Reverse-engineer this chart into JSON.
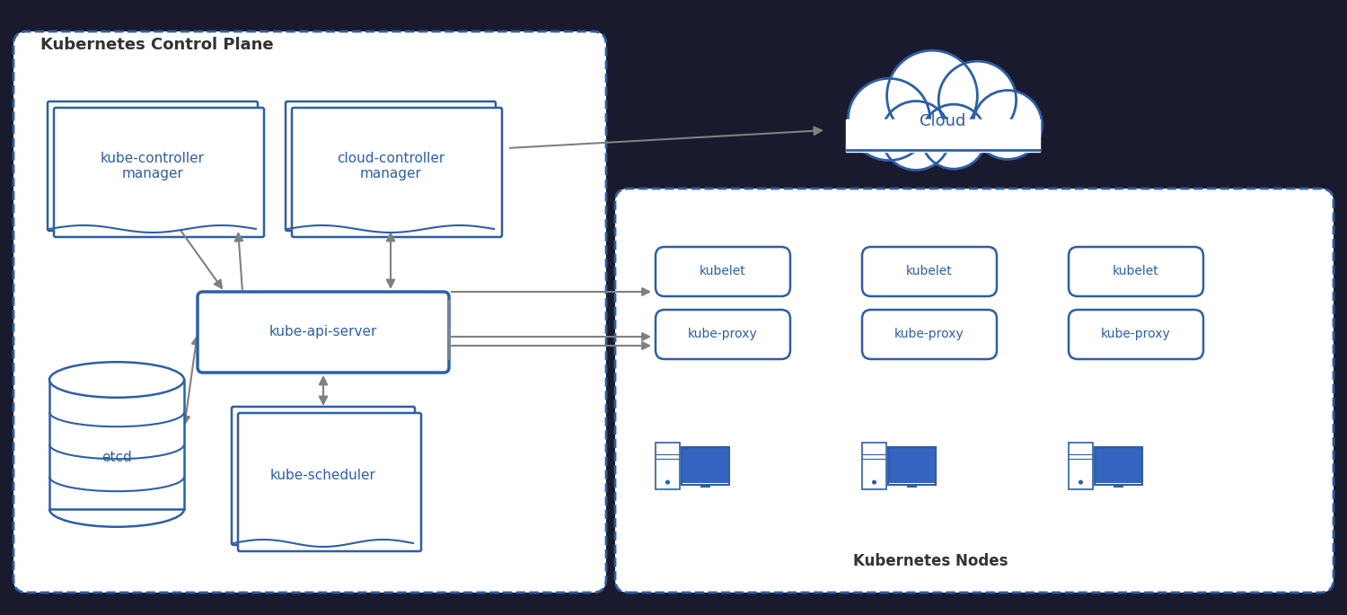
{
  "bg_color": "#1a1a2e",
  "diagram_bg": "#ffffff",
  "control_plane_bg": "#f0f4ff",
  "nodes_bg": "#f0f4ff",
  "box_color": "#2d5fa6",
  "box_edge_color": "#2d5fa6",
  "box_fill": "#ffffff",
  "text_color": "#2d5fa6",
  "arrow_color": "#808080",
  "title_color": "#333333",
  "cloud_fill": "#ffffff",
  "cloud_stroke": "#2d5fa6",
  "title": "Kubernetes Control Plane",
  "nodes_title": "Kubernetes Nodes",
  "components": {
    "kube_controller": "kube-controller\nmanager",
    "cloud_controller": "cloud-controller\nmanager",
    "kube_api": "kube-api-server",
    "etcd": "etcd",
    "kube_scheduler": "kube-scheduler",
    "kubelet": "kubelet",
    "kube_proxy": "kube-proxy",
    "cloud": "Cloud"
  }
}
